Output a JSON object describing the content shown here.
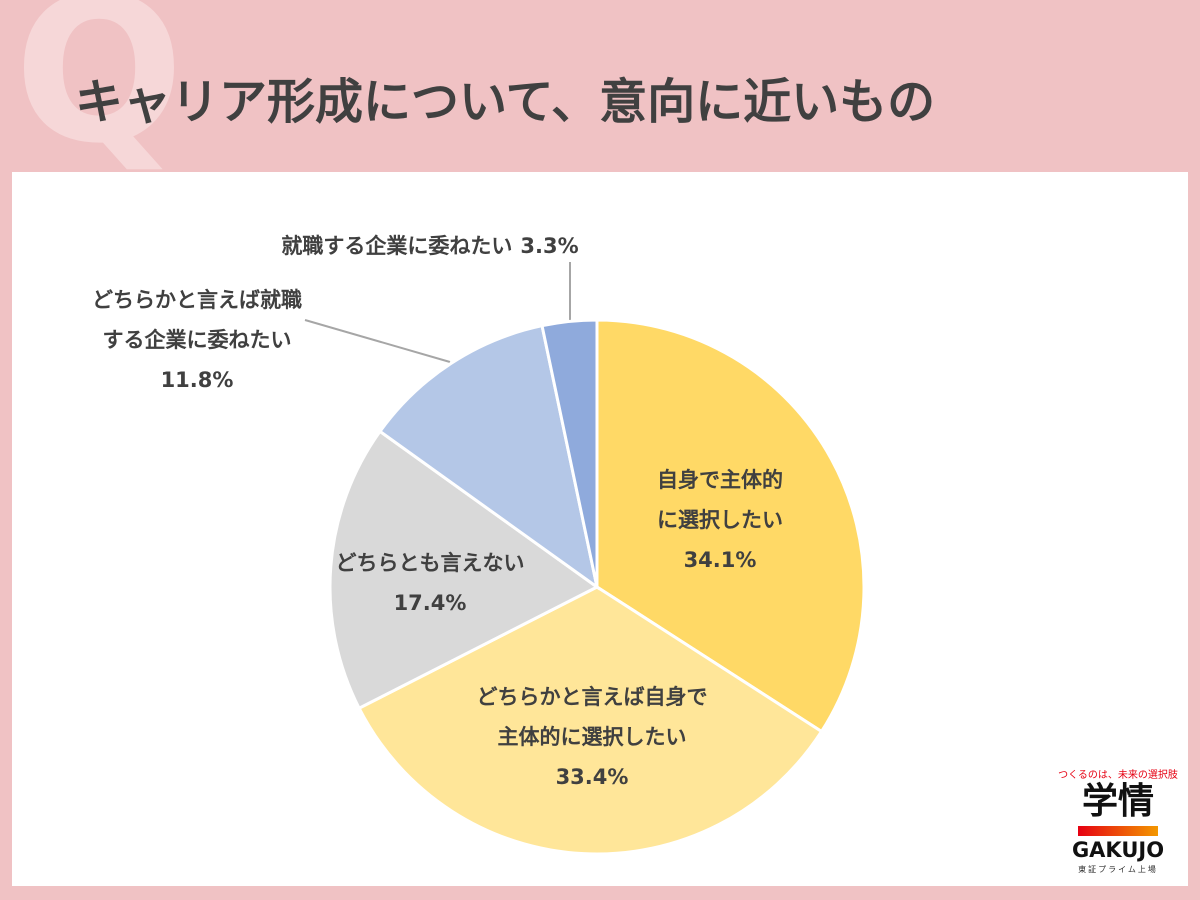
{
  "badge": "Q",
  "chart_data": {
    "type": "pie",
    "title": "キャリア形成について、意向に近いもの",
    "categories": [
      "自身で主体的に選択したい",
      "どちらかと言えば自身で主体的に選択したい",
      "どちらとも言えない",
      "どちらかと言えば就職する企業に委ねたい",
      "就職する企業に委ねたい"
    ],
    "values": [
      34.1,
      33.4,
      17.4,
      11.8,
      3.3
    ],
    "value_labels": [
      "34.1%",
      "33.4%",
      "17.4%",
      "11.8%",
      "3.3%"
    ],
    "colors": [
      "#FFD966",
      "#FFE699",
      "#D9D9D9",
      "#B4C7E7",
      "#8FAADC"
    ]
  },
  "logo": {
    "tagline": "つくるのは、未来の選択肢",
    "name": "学情",
    "roman": "GAKUJO",
    "note": "東証プライム上場"
  }
}
